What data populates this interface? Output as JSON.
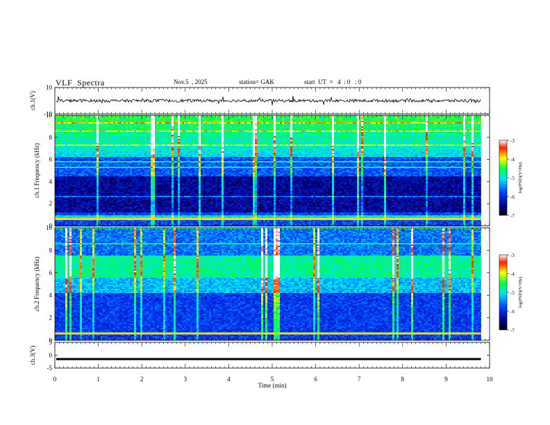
{
  "header": {
    "title": "VLF  Spectra",
    "date": "Nov.5  , 2025",
    "station": "station= GAK",
    "start": "start  UT  =   4  : 0   : 0"
  },
  "chart_data": [
    {
      "type": "line",
      "panel": "ch1-waveform",
      "ylabel": "ch.1(V)",
      "ylim": [
        -10,
        10
      ],
      "yticks": [
        "10",
        "-10"
      ],
      "xlim": [
        0,
        10
      ],
      "trace": {
        "mean": 0,
        "color": "#000000"
      }
    },
    {
      "type": "heatmap",
      "panel": "ch1-spectrogram",
      "ylabel": "ch.1  Frequency  (kHz)",
      "ylim": [
        0,
        10
      ],
      "yticks": [
        "0",
        "2",
        "4",
        "6",
        "8",
        "10"
      ],
      "xlim": [
        0,
        10
      ],
      "data_xmax": 9.8,
      "colorbar": {
        "label": "log(PSD)(V²/Hz)",
        "range": [
          -7,
          -3
        ],
        "ticks": [
          "-3",
          "-4",
          "-5",
          "-6",
          "-7"
        ]
      }
    },
    {
      "type": "heatmap",
      "panel": "ch2-spectrogram",
      "ylabel": "ch.2  Frequency  (kHz)",
      "ylim": [
        0,
        10
      ],
      "yticks": [
        "0",
        "2",
        "4",
        "6",
        "8",
        "10"
      ],
      "xlim": [
        0,
        10
      ],
      "data_xmax": 9.8,
      "colorbar": {
        "label": "log(PSD)(V²/Hz)",
        "range": [
          -7,
          -3
        ],
        "ticks": [
          "-3",
          "-4",
          "-5",
          "-6",
          "-7"
        ]
      }
    },
    {
      "type": "line",
      "panel": "ch3-waveform",
      "ylabel": "ch.3(V)",
      "ylim": [
        -5,
        5
      ],
      "yticks": [
        "5",
        "0",
        "-5"
      ],
      "xlim": [
        0,
        10
      ],
      "trace": {
        "value": -1.5,
        "color": "#000000"
      }
    }
  ],
  "xaxis": {
    "label": "Time  (min)",
    "ticks": [
      "0",
      "1",
      "2",
      "3",
      "4",
      "5",
      "6",
      "7",
      "8",
      "9",
      "10"
    ]
  }
}
